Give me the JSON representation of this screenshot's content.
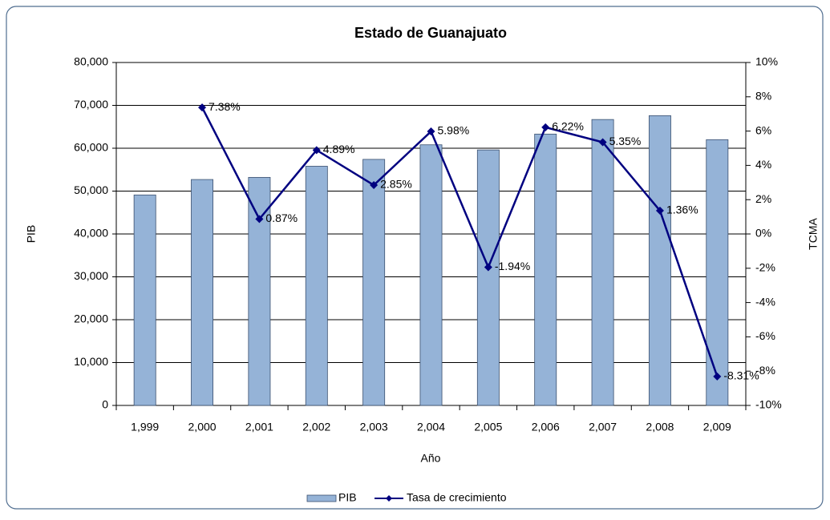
{
  "chart_data": {
    "type": "bar",
    "title": "Estado de Guanajuato",
    "x_label": "Año",
    "y_label": "PIB",
    "y2_label": "TCMA",
    "categories": [
      "1,999",
      "2,000",
      "2,001",
      "2,002",
      "2,003",
      "2,004",
      "2,005",
      "2,006",
      "2,007",
      "2,008",
      "2,009"
    ],
    "series": [
      {
        "name": "PIB",
        "type": "bar",
        "color": "#95b3d7",
        "values": [
          49100,
          52700,
          53200,
          55800,
          57400,
          60800,
          59600,
          63300,
          66700,
          67600,
          62000
        ]
      },
      {
        "name": "Tasa de crecimiento",
        "type": "line",
        "axis": "y2",
        "color": "#000080",
        "values": [
          null,
          7.38,
          0.87,
          4.89,
          2.85,
          5.98,
          -1.94,
          6.22,
          5.35,
          1.36,
          -8.31
        ],
        "value_labels": [
          null,
          "7.38%",
          "0.87%",
          "4.89%",
          "2.85%",
          "5.98%",
          "-1.94%",
          "6.22%",
          "5.35%",
          "1.36%",
          "-8.31%"
        ]
      }
    ],
    "ylim": [
      0,
      80000
    ],
    "yticks": [
      0,
      {
        "value": 10000,
        "label": "10,000"
      },
      {
        "value": 20000,
        "label": "20,000"
      },
      {
        "value": 30000,
        "label": "30,000"
      },
      {
        "value": 40000,
        "label": "40,000"
      },
      {
        "value": 50000,
        "label": "50,000"
      },
      {
        "value": 60000,
        "label": "60,000"
      },
      {
        "value": 70000,
        "label": "70,000"
      },
      {
        "value": 80000,
        "label": "80,000"
      }
    ],
    "y2lim": [
      -10,
      10
    ],
    "y2ticks": [
      {
        "value": -10,
        "label": "-10%"
      },
      {
        "value": -8,
        "label": "-8%"
      },
      {
        "value": -6,
        "label": "-6%"
      },
      {
        "value": -4,
        "label": "-4%"
      },
      {
        "value": -2,
        "label": "-2%"
      },
      {
        "value": 0,
        "label": "0%"
      },
      {
        "value": 2,
        "label": "2%"
      },
      {
        "value": 4,
        "label": "4%"
      },
      {
        "value": 6,
        "label": "6%"
      },
      {
        "value": 8,
        "label": "8%"
      },
      {
        "value": 10,
        "label": "10%"
      }
    ],
    "grid": true
  }
}
